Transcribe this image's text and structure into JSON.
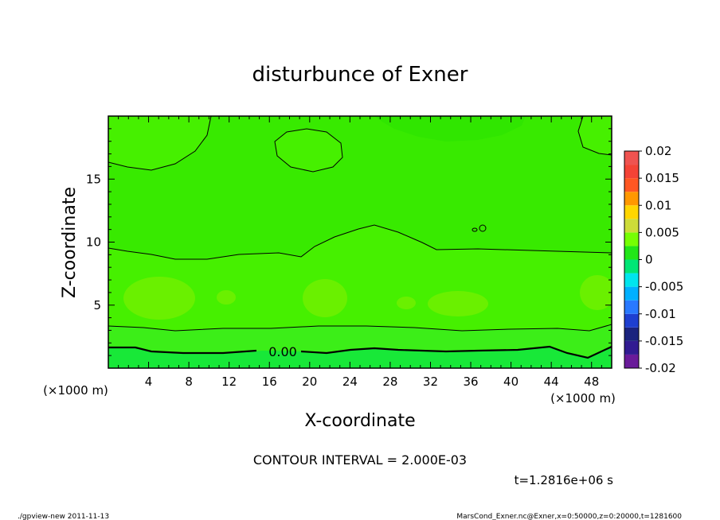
{
  "chart_data": {
    "type": "heatmap",
    "title": "disturbunce of Exner",
    "xlabel": "X-coordinate",
    "ylabel": "Z-coordinate",
    "x_units": "(×1000 m)",
    "y_units": "(×1000 m)",
    "xlim": [
      0,
      50
    ],
    "ylim": [
      0,
      20
    ],
    "x_ticks": [
      4,
      8,
      12,
      16,
      20,
      24,
      28,
      32,
      36,
      40,
      44,
      48
    ],
    "y_ticks": [
      5,
      10,
      15
    ],
    "colorbar": {
      "range": [
        -0.02,
        0.02
      ],
      "levels": [
        -0.02,
        -0.0175,
        -0.015,
        -0.0125,
        -0.01,
        -0.0075,
        -0.005,
        -0.0025,
        0,
        0.0025,
        0.005,
        0.0075,
        0.01,
        0.0125,
        0.015,
        0.0175,
        0.02
      ],
      "tick_labels": [
        "0.02",
        "0.015",
        "0.01",
        "0.005",
        "0",
        "-0.005",
        "-0.01",
        "-0.015",
        "-0.02"
      ],
      "colors": [
        "#6a1b9a",
        "#311b92",
        "#1a237e",
        "#1e3fd0",
        "#2979ff",
        "#00b0ff",
        "#00e5ee",
        "#00e676",
        "#22e619",
        "#76ff03",
        "#cddc39",
        "#ffd600",
        "#ff9800",
        "#ff5722",
        "#f44336",
        "#ef5350",
        "#f48fb1"
      ]
    },
    "contour_label": "0.00",
    "contour_interval_text": "CONTOUR INTERVAL = 2.000E-03",
    "time_text": "t=1.2816e+06 s",
    "field_colors": {
      "bottom": "#18e838",
      "lower": "#3cee18",
      "mid": "#46f000",
      "upper": "#38ea00",
      "top_center": "#30e600",
      "blob": "#6af000"
    }
  },
  "footer": {
    "left": "./gpview-new   2011-11-13",
    "right": "MarsCond_Exner.nc@Exner,x=0:50000,z=0:20000,t=1281600"
  }
}
